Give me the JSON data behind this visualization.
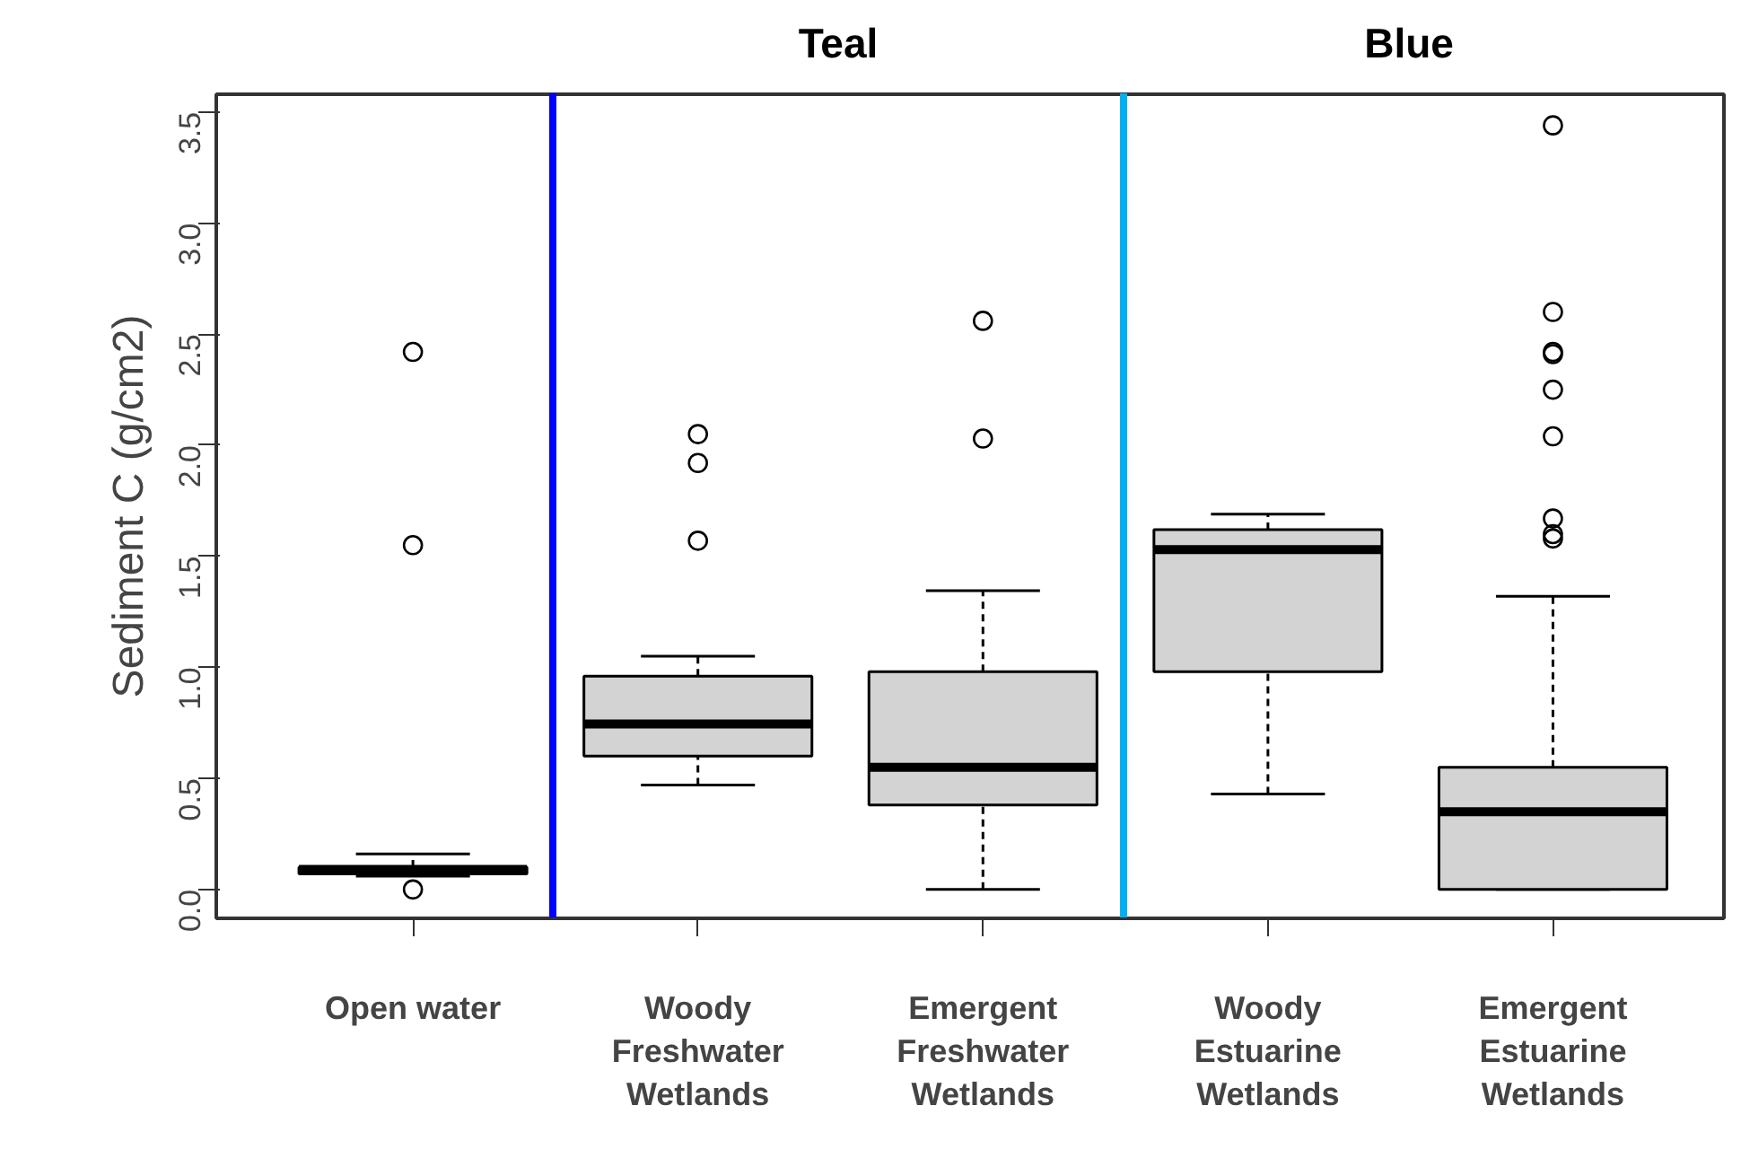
{
  "chart_data": {
    "type": "box",
    "ylabel": "Sediment C (g/cm2)",
    "categories": [
      "Open water",
      "Woody\nFreshwater\nWetlands",
      "Emergent\nFreshwater\nWetlands",
      "Woody\nEstuarine\nWetlands",
      "Emergent\nEstuarine\nWetlands"
    ],
    "boxes": [
      {
        "low": 0.06,
        "q1": 0.07,
        "median": 0.09,
        "q3": 0.1,
        "high": 0.16,
        "outliers": [
          0.0,
          1.55,
          2.42
        ]
      },
      {
        "low": 0.47,
        "q1": 0.6,
        "median": 0.745,
        "q3": 0.96,
        "high": 1.05,
        "outliers": [
          1.57,
          1.92,
          2.05
        ]
      },
      {
        "low": 0.0,
        "q1": 0.38,
        "median": 0.55,
        "q3": 0.98,
        "high": 1.345,
        "outliers": [
          2.03,
          2.56
        ]
      },
      {
        "low": 0.43,
        "q1": 0.98,
        "median": 1.53,
        "q3": 1.62,
        "high": 1.69
      },
      {
        "low": 0.0,
        "q1": 0.0,
        "median": 0.35,
        "q3": 0.55,
        "high": 1.32,
        "outliers": [
          1.58,
          1.6,
          1.67,
          2.04,
          2.25,
          2.41,
          2.42,
          2.6,
          3.44
        ]
      }
    ],
    "color": "#d3d3d3",
    "ylim": [
      -0.13,
      3.58
    ],
    "yticks": [
      {
        "value": 0,
        "label": "0.0"
      },
      {
        "value": 0.5,
        "label": "0.5"
      },
      {
        "value": 1,
        "label": "1.0"
      },
      {
        "value": 1.5,
        "label": "1.5"
      },
      {
        "value": 2,
        "label": "2.0"
      },
      {
        "value": 2.5,
        "label": "2.5"
      },
      {
        "value": 3,
        "label": "3.0"
      },
      {
        "value": 3.5,
        "label": "3.5"
      }
    ],
    "annotations": [
      "Teal",
      "Blue"
    ]
  }
}
